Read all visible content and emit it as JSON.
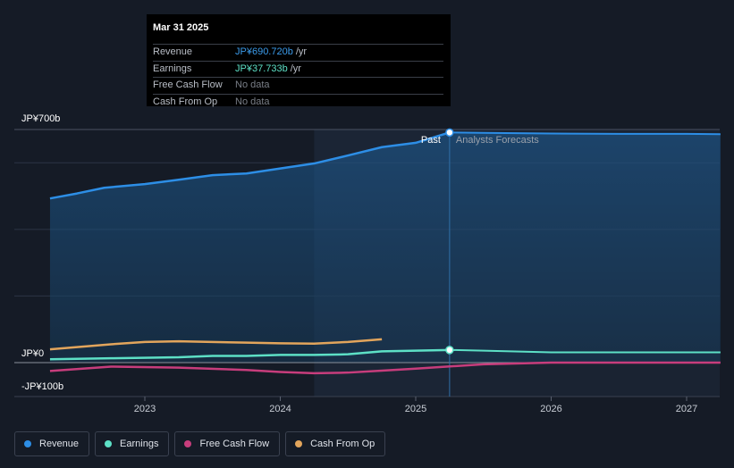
{
  "chart_data": {
    "type": "line",
    "title": "",
    "x_domain": [
      2022.3,
      2027.25
    ],
    "ylim": [
      -100,
      700
    ],
    "y_ticks": [
      {
        "value": 700,
        "label": "JP¥700b"
      },
      {
        "value": 0,
        "label": "JP¥0"
      },
      {
        "value": -100,
        "label": "-JP¥100b"
      }
    ],
    "x_ticks": [
      {
        "value": 2023,
        "label": "2023"
      },
      {
        "value": 2024,
        "label": "2024"
      },
      {
        "value": 2025,
        "label": "2025"
      },
      {
        "value": 2026,
        "label": "2026"
      },
      {
        "value": 2027,
        "label": "2027"
      }
    ],
    "highlight_range": [
      2024.25,
      2025.25
    ],
    "past_boundary": 2025.25,
    "past_label": "Past",
    "forecast_label": "Analysts Forecasts",
    "series": [
      {
        "name": "Revenue",
        "color": "#2d8ee6",
        "filled": true,
        "points": [
          [
            2022.3,
            493
          ],
          [
            2022.5,
            508
          ],
          [
            2022.7,
            525
          ],
          [
            2023.0,
            536
          ],
          [
            2023.25,
            549
          ],
          [
            2023.5,
            563
          ],
          [
            2023.75,
            568
          ],
          [
            2024.0,
            583
          ],
          [
            2024.25,
            598
          ],
          [
            2024.5,
            622
          ],
          [
            2024.75,
            647
          ],
          [
            2025.0,
            660
          ],
          [
            2025.25,
            691
          ]
        ],
        "forecast": [
          [
            2025.25,
            691
          ],
          [
            2025.5,
            690
          ],
          [
            2026.0,
            688
          ],
          [
            2026.5,
            687
          ],
          [
            2027.0,
            687
          ],
          [
            2027.25,
            686
          ]
        ]
      },
      {
        "name": "Earnings",
        "color": "#5de0c6",
        "filled": false,
        "points": [
          [
            2022.3,
            10
          ],
          [
            2022.75,
            13
          ],
          [
            2023.25,
            16
          ],
          [
            2023.5,
            20
          ],
          [
            2023.75,
            20
          ],
          [
            2024.0,
            23
          ],
          [
            2024.25,
            23
          ],
          [
            2024.5,
            25
          ],
          [
            2024.75,
            34
          ],
          [
            2025.0,
            36
          ],
          [
            2025.25,
            38
          ]
        ],
        "forecast": [
          [
            2025.25,
            38
          ],
          [
            2025.5,
            36
          ],
          [
            2026.0,
            31
          ],
          [
            2026.5,
            31
          ],
          [
            2027.0,
            31
          ],
          [
            2027.25,
            31
          ]
        ]
      },
      {
        "name": "Free Cash Flow",
        "color": "#c73d7c",
        "filled": false,
        "points": [
          [
            2022.3,
            -25
          ],
          [
            2022.75,
            -12
          ],
          [
            2023.25,
            -15
          ],
          [
            2023.75,
            -22
          ],
          [
            2024.0,
            -28
          ],
          [
            2024.25,
            -32
          ],
          [
            2024.5,
            -30
          ],
          [
            2024.75,
            -24
          ],
          [
            2025.0,
            -18
          ],
          [
            2025.5,
            -5
          ],
          [
            2026.0,
            0
          ],
          [
            2027.0,
            0
          ],
          [
            2027.25,
            0
          ]
        ],
        "forecast": []
      },
      {
        "name": "Cash From Op",
        "color": "#e2a55c",
        "filled": false,
        "points": [
          [
            2022.3,
            40
          ],
          [
            2022.75,
            55
          ],
          [
            2023.0,
            62
          ],
          [
            2023.25,
            64
          ],
          [
            2023.75,
            60
          ],
          [
            2024.0,
            58
          ],
          [
            2024.25,
            57
          ],
          [
            2024.5,
            62
          ],
          [
            2024.75,
            70
          ]
        ],
        "forecast": []
      }
    ],
    "tooltip": {
      "date": "Mar 31 2025",
      "rows": [
        {
          "label": "Revenue",
          "value": "JP¥690.720b",
          "unit": "/yr"
        },
        {
          "label": "Earnings",
          "value": "JP¥37.733b",
          "unit": "/yr"
        },
        {
          "label": "Free Cash Flow",
          "value": "No data",
          "unit": ""
        },
        {
          "label": "Cash From Op",
          "value": "No data",
          "unit": ""
        }
      ]
    }
  },
  "legend": [
    {
      "label": "Revenue",
      "color": "#2d8ee6"
    },
    {
      "label": "Earnings",
      "color": "#5de0c6"
    },
    {
      "label": "Free Cash Flow",
      "color": "#c73d7c"
    },
    {
      "label": "Cash From Op",
      "color": "#e2a55c"
    }
  ]
}
